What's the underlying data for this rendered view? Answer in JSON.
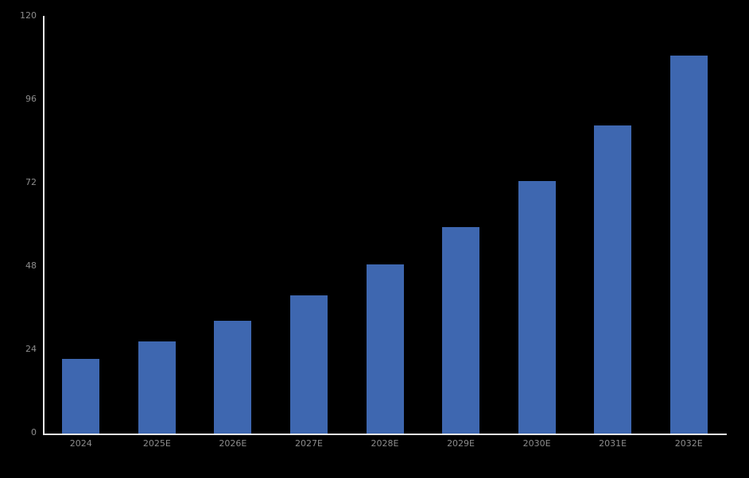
{
  "chart_data": {
    "type": "bar",
    "title": "",
    "xlabel": "",
    "ylabel": "",
    "categories": [
      "2024",
      "2025E",
      "2026E",
      "2027E",
      "2028E",
      "2029E",
      "2030E",
      "2031E",
      "2032E"
    ],
    "values": [
      21.6,
      26.6,
      32.4,
      39.8,
      48.6,
      59.4,
      72.7,
      88.7,
      108.8
    ],
    "ylim": [
      0,
      120
    ],
    "yticks": [
      0,
      24,
      48,
      72,
      96,
      120
    ],
    "ytick_labels": [
      "0",
      "24",
      "48",
      "72",
      "96",
      "120"
    ],
    "grid": false,
    "legend": null,
    "colors": {
      "background": "#000000",
      "bar_fill": "#3e67b0",
      "axis_line": "#e8e8e8",
      "tick_label": "#8c8c8c"
    }
  }
}
